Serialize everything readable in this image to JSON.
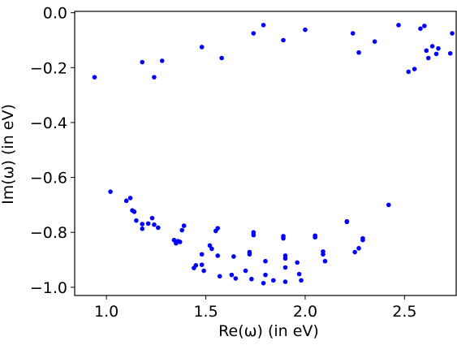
{
  "chart_data": {
    "type": "scatter",
    "xlabel": "Re(ω) (in eV)",
    "ylabel": "Im(ω) (in eV)",
    "xlim": [
      0.84,
      2.76
    ],
    "ylim": [
      -1.03,
      0.005
    ],
    "xticks": [
      "1.0",
      "1.5",
      "2.0",
      "2.5"
    ],
    "yticks": [
      "0.0",
      "−0.2",
      "−0.4",
      "−0.6",
      "−0.8",
      "−1.0"
    ],
    "grid": false,
    "marker_color": "#0000ff",
    "series": [
      {
        "points": [
          [
            0.94,
            -0.235
          ],
          [
            1.18,
            -0.18
          ],
          [
            1.24,
            -0.235
          ],
          [
            1.28,
            -0.175
          ],
          [
            1.48,
            -0.125
          ],
          [
            1.58,
            -0.165
          ],
          [
            1.74,
            -0.075
          ],
          [
            1.79,
            -0.045
          ],
          [
            1.89,
            -0.1
          ],
          [
            2.0,
            -0.062
          ],
          [
            2.24,
            -0.075
          ],
          [
            2.27,
            -0.145
          ],
          [
            2.35,
            -0.105
          ],
          [
            2.47,
            -0.045
          ],
          [
            2.52,
            -0.215
          ],
          [
            2.55,
            -0.205
          ],
          [
            2.58,
            -0.058
          ],
          [
            2.6,
            -0.048
          ],
          [
            2.61,
            -0.138
          ],
          [
            2.62,
            -0.165
          ],
          [
            2.64,
            -0.122
          ],
          [
            2.66,
            -0.15
          ],
          [
            2.67,
            -0.13
          ],
          [
            2.73,
            -0.148
          ],
          [
            2.74,
            -0.075
          ],
          [
            1.02,
            -0.652
          ],
          [
            1.1,
            -0.685
          ],
          [
            1.12,
            -0.675
          ],
          [
            1.13,
            -0.72
          ],
          [
            1.14,
            -0.725
          ],
          [
            1.15,
            -0.757
          ],
          [
            1.18,
            -0.77
          ],
          [
            1.18,
            -0.787
          ],
          [
            1.21,
            -0.768
          ],
          [
            1.23,
            -0.748
          ],
          [
            1.24,
            -0.772
          ],
          [
            1.26,
            -0.783
          ],
          [
            1.34,
            -0.828
          ],
          [
            1.35,
            -0.84
          ],
          [
            1.36,
            -0.832
          ],
          [
            1.37,
            -0.835
          ],
          [
            1.38,
            -0.792
          ],
          [
            1.39,
            -0.776
          ],
          [
            1.44,
            -0.93
          ],
          [
            1.45,
            -0.92
          ],
          [
            1.48,
            -0.918
          ],
          [
            1.48,
            -0.88
          ],
          [
            1.49,
            -0.94
          ],
          [
            1.52,
            -0.848
          ],
          [
            1.53,
            -0.86
          ],
          [
            1.55,
            -0.795
          ],
          [
            1.56,
            -0.785
          ],
          [
            1.56,
            -0.885
          ],
          [
            1.57,
            -0.96
          ],
          [
            1.63,
            -0.955
          ],
          [
            1.64,
            -0.888
          ],
          [
            1.65,
            -0.968
          ],
          [
            1.7,
            -0.94
          ],
          [
            1.72,
            -0.872
          ],
          [
            1.72,
            -0.88
          ],
          [
            1.73,
            -0.97
          ],
          [
            1.74,
            -0.8
          ],
          [
            1.74,
            -0.81
          ],
          [
            1.79,
            -0.985
          ],
          [
            1.8,
            -0.905
          ],
          [
            1.8,
            -0.955
          ],
          [
            1.84,
            -0.975
          ],
          [
            1.89,
            -0.822
          ],
          [
            1.89,
            -0.814
          ],
          [
            1.9,
            -0.885
          ],
          [
            1.9,
            -0.895
          ],
          [
            1.9,
            -0.928
          ],
          [
            1.9,
            -0.98
          ],
          [
            1.96,
            -0.91
          ],
          [
            1.97,
            -0.952
          ],
          [
            1.98,
            -0.975
          ],
          [
            2.05,
            -0.812
          ],
          [
            2.05,
            -0.818
          ],
          [
            2.09,
            -0.87
          ],
          [
            2.09,
            -0.88
          ],
          [
            2.1,
            -0.905
          ],
          [
            2.21,
            -0.76
          ],
          [
            2.21,
            -0.762
          ],
          [
            2.25,
            -0.872
          ],
          [
            2.27,
            -0.858
          ],
          [
            2.29,
            -0.822
          ],
          [
            2.29,
            -0.828
          ],
          [
            2.42,
            -0.7
          ]
        ]
      }
    ]
  }
}
